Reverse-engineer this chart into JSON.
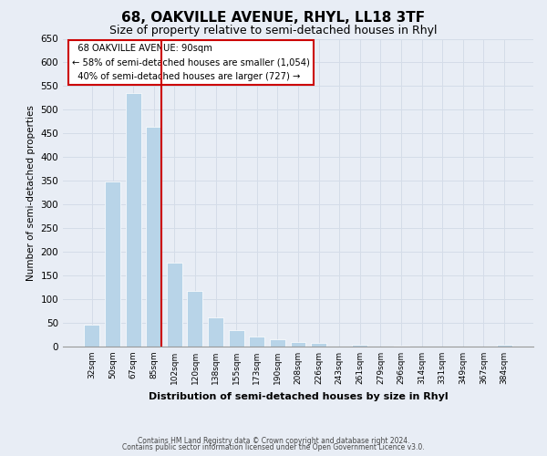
{
  "title": "68, OAKVILLE AVENUE, RHYL, LL18 3TF",
  "subtitle": "Size of property relative to semi-detached houses in Rhyl",
  "xlabel": "Distribution of semi-detached houses by size in Rhyl",
  "ylabel": "Number of semi-detached properties",
  "footer_line1": "Contains HM Land Registry data © Crown copyright and database right 2024.",
  "footer_line2": "Contains public sector information licensed under the Open Government Licence v3.0.",
  "bin_labels": [
    "32sqm",
    "50sqm",
    "67sqm",
    "85sqm",
    "102sqm",
    "120sqm",
    "138sqm",
    "155sqm",
    "173sqm",
    "190sqm",
    "208sqm",
    "226sqm",
    "243sqm",
    "261sqm",
    "279sqm",
    "296sqm",
    "314sqm",
    "331sqm",
    "349sqm",
    "367sqm",
    "384sqm"
  ],
  "bin_values": [
    46,
    348,
    535,
    465,
    178,
    118,
    62,
    35,
    22,
    15,
    10,
    8,
    0,
    3,
    0,
    2,
    0,
    0,
    0,
    0,
    3
  ],
  "bar_color": "#b8d4e8",
  "bar_edge_color": "#b8d4e8",
  "highlight_bar_index": 3,
  "highlight_line_color": "#cc0000",
  "annotation_title": "68 OAKVILLE AVENUE: 90sqm",
  "annotation_line1": "← 58% of semi-detached houses are smaller (1,054)",
  "annotation_line2": "40% of semi-detached houses are larger (727) →",
  "annotation_box_color": "#ffffff",
  "annotation_box_edge": "#cc0000",
  "ylim": [
    0,
    650
  ],
  "yticks": [
    0,
    50,
    100,
    150,
    200,
    250,
    300,
    350,
    400,
    450,
    500,
    550,
    600,
    650
  ],
  "grid_color": "#d4dce8",
  "background_color": "#e8edf5",
  "plot_bg_color": "#e8edf5",
  "title_fontsize": 11,
  "subtitle_fontsize": 9
}
